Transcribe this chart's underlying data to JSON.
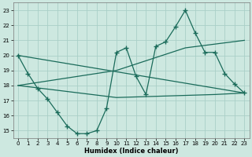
{
  "xlabel": "Humidex (Indice chaleur)",
  "bg_color": "#cde8e0",
  "grid_color": "#aacfc7",
  "line_color": "#1a6b5a",
  "xlim": [
    -0.5,
    23.5
  ],
  "ylim": [
    14.5,
    23.5
  ],
  "yticks": [
    15,
    16,
    17,
    18,
    19,
    20,
    21,
    22,
    23
  ],
  "xticks": [
    0,
    1,
    2,
    3,
    4,
    5,
    6,
    7,
    8,
    9,
    10,
    11,
    12,
    13,
    14,
    15,
    16,
    17,
    18,
    19,
    20,
    21,
    22,
    23
  ],
  "line1_x": [
    0,
    1,
    2,
    3,
    4,
    5,
    6,
    7,
    8,
    9,
    10,
    11,
    12,
    13,
    14,
    15,
    16,
    17,
    18,
    19,
    20,
    21,
    22,
    23
  ],
  "line1_y": [
    20.0,
    18.8,
    17.8,
    17.1,
    16.2,
    15.3,
    14.8,
    14.8,
    15.0,
    16.5,
    20.2,
    20.5,
    18.6,
    17.4,
    20.6,
    20.9,
    21.9,
    23.0,
    21.5,
    20.2,
    20.2,
    18.8,
    18.1,
    17.5
  ],
  "line2_x": [
    0,
    23
  ],
  "line2_y": [
    20.0,
    17.5
  ],
  "line3_x": [
    0,
    10,
    17,
    23
  ],
  "line3_y": [
    18.0,
    19.0,
    20.5,
    21.0
  ],
  "line4_x": [
    0,
    10,
    20,
    23
  ],
  "line4_y": [
    18.0,
    17.2,
    17.4,
    17.5
  ]
}
